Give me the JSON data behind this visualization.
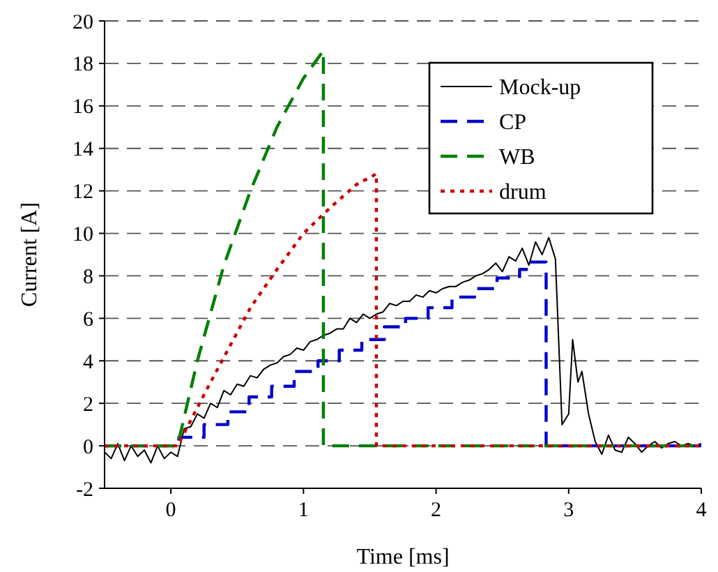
{
  "chart_data": {
    "type": "line",
    "xlabel": "Time [ms]",
    "ylabel": "Current [A]",
    "xlim": [
      -0.5,
      4
    ],
    "ylim": [
      -2,
      20
    ],
    "xticks": [
      0,
      1,
      2,
      3,
      4
    ],
    "yticks": [
      -2,
      0,
      2,
      4,
      6,
      8,
      10,
      12,
      14,
      16,
      18,
      20
    ],
    "grid": "y",
    "legend": "top right",
    "marker": "none",
    "series": [
      {
        "name": "Mock-up",
        "color": "#000000",
        "line_style": "solid",
        "x": [
          -0.5,
          -0.45,
          -0.4,
          -0.35,
          -0.3,
          -0.25,
          -0.2,
          -0.15,
          -0.1,
          -0.05,
          0,
          0.05,
          0.1,
          0.15,
          0.2,
          0.25,
          0.3,
          0.35,
          0.4,
          0.45,
          0.5,
          0.55,
          0.6,
          0.65,
          0.7,
          0.75,
          0.8,
          0.85,
          0.9,
          0.95,
          1.0,
          1.05,
          1.1,
          1.15,
          1.2,
          1.25,
          1.3,
          1.35,
          1.4,
          1.45,
          1.5,
          1.55,
          1.6,
          1.65,
          1.7,
          1.75,
          1.8,
          1.85,
          1.9,
          1.95,
          2.0,
          2.05,
          2.1,
          2.15,
          2.2,
          2.25,
          2.3,
          2.35,
          2.4,
          2.45,
          2.5,
          2.55,
          2.6,
          2.65,
          2.7,
          2.75,
          2.8,
          2.85,
          2.9,
          2.95,
          3.0,
          3.03,
          3.07,
          3.1,
          3.15,
          3.2,
          3.25,
          3.3,
          3.35,
          3.4,
          3.45,
          3.5,
          3.55,
          3.6,
          3.65,
          3.7,
          3.75,
          3.8,
          3.85,
          3.9,
          3.95,
          4.0
        ],
        "values": [
          -0.3,
          -0.6,
          0.1,
          -0.7,
          0,
          -0.5,
          -0.2,
          -0.8,
          0,
          -0.6,
          -0.3,
          -0.5,
          0.8,
          0.9,
          1.5,
          1.3,
          2.0,
          1.8,
          2.6,
          2.4,
          2.9,
          2.8,
          3.3,
          3.2,
          3.6,
          3.8,
          3.9,
          4.2,
          4.3,
          4.6,
          4.5,
          4.9,
          5.0,
          5.2,
          5.3,
          5.5,
          5.5,
          6.0,
          5.8,
          6.2,
          6.0,
          6.2,
          6.3,
          6.7,
          6.6,
          6.8,
          6.8,
          7.1,
          7.0,
          7.3,
          7.2,
          7.4,
          7.5,
          7.5,
          7.7,
          7.8,
          8.0,
          8.1,
          8.3,
          8.6,
          8.2,
          8.9,
          8.7,
          9.3,
          8.5,
          9.6,
          9.0,
          9.8,
          8.8,
          1.0,
          1.5,
          5.0,
          3.0,
          3.5,
          1.5,
          0.2,
          -0.4,
          0.5,
          -0.2,
          -0.3,
          0.4,
          0.1,
          -0.3,
          0,
          0.2,
          -0.1,
          0.1,
          0.2,
          0,
          0.1,
          0,
          0.1
        ]
      },
      {
        "name": "CP",
        "type": "step",
        "color": "#0000cc",
        "line_style": "dashed",
        "x": [
          -0.5,
          0.06,
          0.25,
          0.43,
          0.59,
          0.76,
          0.93,
          1.11,
          1.27,
          1.44,
          1.61,
          1.77,
          1.94,
          2.12,
          2.29,
          2.46,
          2.63,
          2.7,
          2.83,
          4.0
        ],
        "values": [
          0,
          0.4,
          1.0,
          1.6,
          2.3,
          2.8,
          3.5,
          4.0,
          4.5,
          5.0,
          5.6,
          6.0,
          6.5,
          7.0,
          7.4,
          7.9,
          8.3,
          8.65,
          0,
          0
        ]
      },
      {
        "name": "WB",
        "color": "#008000",
        "line_style": "dashed",
        "x": [
          -0.5,
          0.05,
          0.2,
          0.4,
          0.6,
          0.8,
          1.0,
          1.15,
          1.15,
          4.0
        ],
        "values": [
          0,
          0,
          4,
          8.5,
          12,
          15,
          17.3,
          18.6,
          0,
          0
        ]
      },
      {
        "name": "drum",
        "color": "#cc0000",
        "line_style": "dotted",
        "x": [
          -0.5,
          0.05,
          0.3,
          0.6,
          0.8,
          1.0,
          1.2,
          1.4,
          1.55,
          1.55,
          4.0
        ],
        "values": [
          0,
          0,
          3,
          6.5,
          8.3,
          10,
          11.2,
          12.3,
          12.8,
          0,
          0
        ]
      }
    ]
  }
}
